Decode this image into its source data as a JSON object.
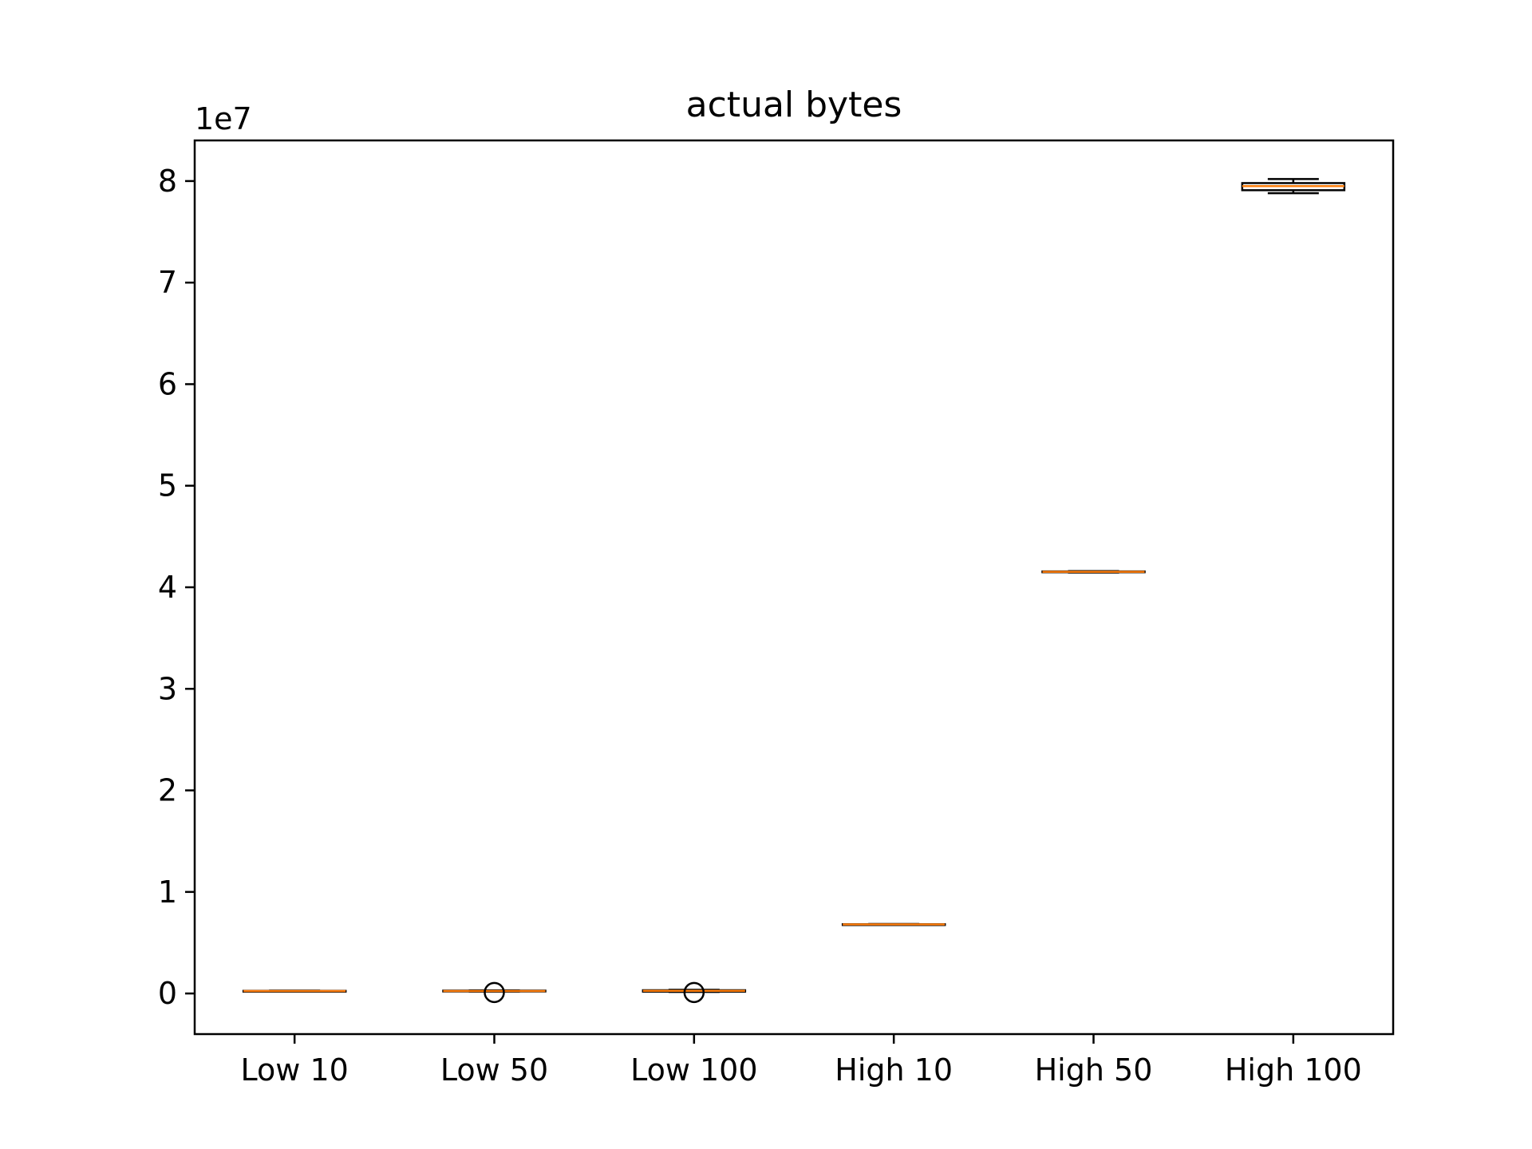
{
  "chart_data": {
    "type": "box",
    "title": "actual bytes",
    "xlabel": "",
    "ylabel": "",
    "y_offset_label": "1e7",
    "y_scale_factor": 10000000,
    "ylim": [
      -0.4,
      8.4
    ],
    "yticks": [
      0,
      1,
      2,
      3,
      4,
      5,
      6,
      7,
      8
    ],
    "grid": false,
    "categories": [
      "Low 10",
      "Low 50",
      "Low 100",
      "High 10",
      "High 50",
      "High 100"
    ],
    "boxes": [
      {
        "label": "Low 10",
        "whisker_low": 0.02,
        "q1": 0.022,
        "median": 0.024,
        "q3": 0.026,
        "whisker_high": 0.028,
        "outliers": []
      },
      {
        "label": "Low 50",
        "whisker_low": 0.018,
        "q1": 0.02,
        "median": 0.024,
        "q3": 0.028,
        "whisker_high": 0.03,
        "outliers": [
          0.01
        ]
      },
      {
        "label": "Low 100",
        "whisker_low": 0.015,
        "q1": 0.018,
        "median": 0.026,
        "q3": 0.032,
        "whisker_high": 0.036,
        "outliers": [
          0.01
        ]
      },
      {
        "label": "High 10",
        "whisker_low": 0.676,
        "q1": 0.678,
        "median": 0.68,
        "q3": 0.682,
        "whisker_high": 0.684,
        "outliers": []
      },
      {
        "label": "High 50",
        "whisker_low": 4.145,
        "q1": 4.148,
        "median": 4.152,
        "q3": 4.156,
        "whisker_high": 4.159,
        "outliers": []
      },
      {
        "label": "High 100",
        "whisker_low": 7.88,
        "q1": 7.91,
        "median": 7.95,
        "q3": 7.98,
        "whisker_high": 8.02,
        "outliers": []
      }
    ],
    "colors": {
      "box": "#000000",
      "median": "#ff7f0e",
      "outlier": "#000000",
      "axes": "#000000"
    }
  }
}
